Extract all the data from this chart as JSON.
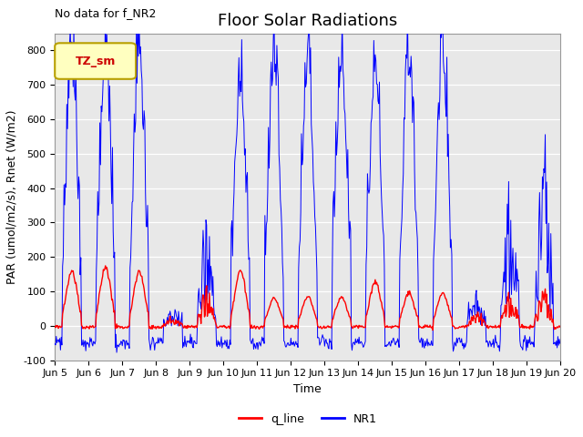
{
  "title": "Floor Solar Radiations",
  "xlabel": "Time",
  "ylabel": "PAR (umol/m2/s), Rnet (W/m2)",
  "ylim": [
    -100,
    850
  ],
  "xtick_labels": [
    "Jun 5",
    "Jun 6",
    "Jun 7",
    "Jun 8",
    "Jun 9",
    "Jun 10",
    "Jun 11",
    "Jun 12",
    "Jun 13",
    "Jun 14",
    "Jun 15",
    "Jun 16",
    "Jun 17",
    "Jun 18",
    "Jun 19",
    "Jun 20"
  ],
  "ytick_labels": [
    -100,
    0,
    100,
    200,
    300,
    400,
    500,
    600,
    700,
    800
  ],
  "color_NR1": "#0000FF",
  "color_q_line": "#FF0000",
  "annotation_text": "No data for f_NR2",
  "legend_box_text": "TZ_sm",
  "legend_box_bg": "#FFFFC0",
  "legend_box_edge": "#B8A000",
  "background_color": "#E8E8E8",
  "title_fontsize": 13,
  "label_fontsize": 9,
  "tick_fontsize": 8
}
